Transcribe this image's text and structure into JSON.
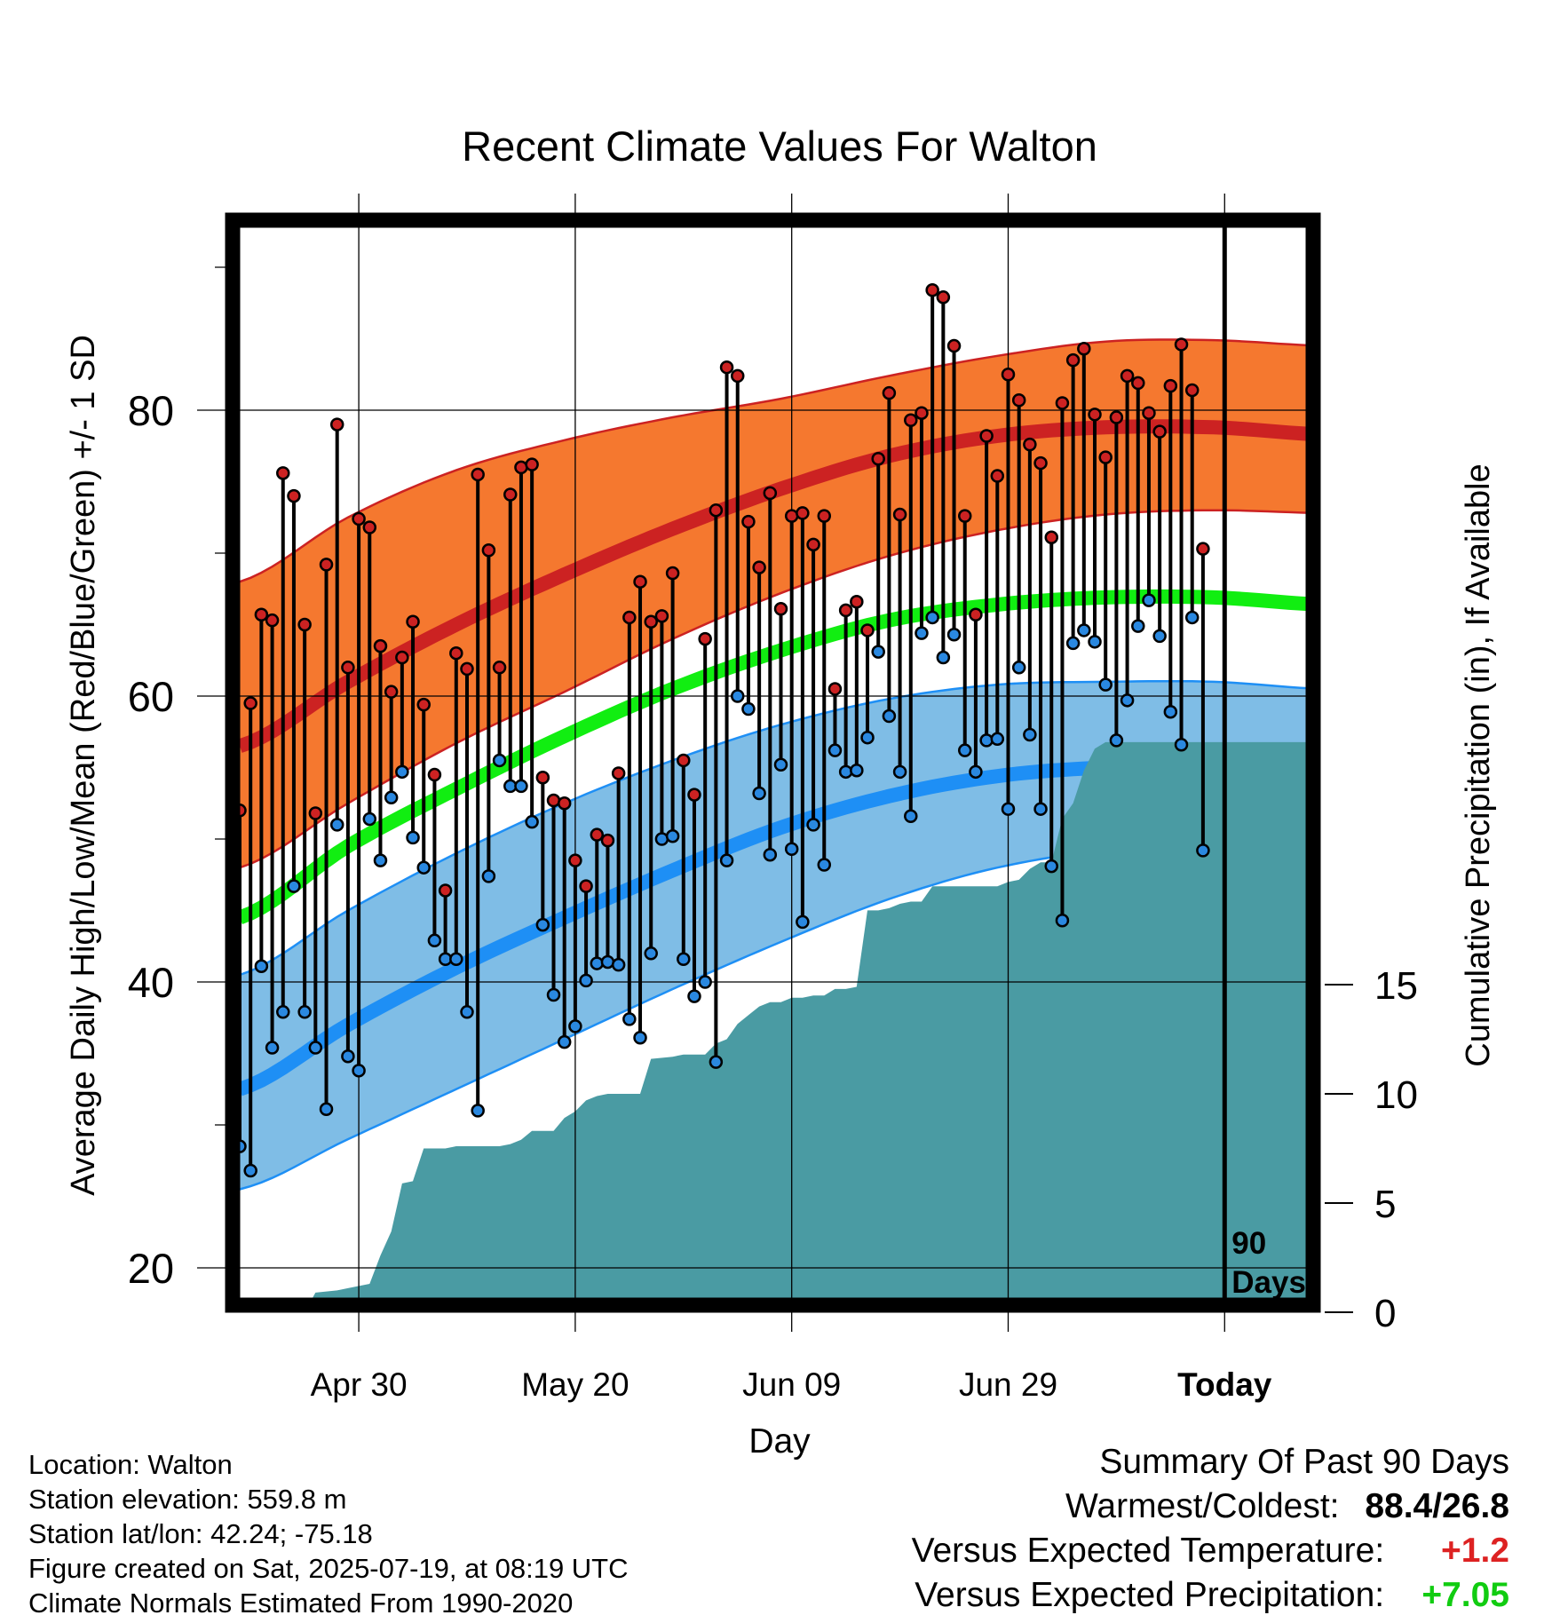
{
  "chart_data": {
    "type": "line",
    "title": "Recent Climate Values For Walton",
    "xlabel": "Day",
    "ylabel": "Average Daily High/Low/Mean (Red/Blue/Green) +/- 1 SD",
    "y2label": "Cumulative Precipitation (in), If Available",
    "x_tick_labels": [
      "Apr 30",
      "May 20",
      "Jun 09",
      "Jun 29",
      "Today"
    ],
    "x_tick_days": [
      11,
      31,
      51,
      71,
      91
    ],
    "ylim": [
      16,
      94
    ],
    "y_ticks": [
      20,
      40,
      60,
      80
    ],
    "y2lim": [
      0,
      41.5
    ],
    "y2_ticks": [
      0,
      5,
      10,
      15
    ],
    "grid": true,
    "today_marker": {
      "day": 91,
      "label_line1": "90",
      "label_line2": "Days"
    },
    "normals": {
      "days": [
        0,
        10,
        20,
        30,
        40,
        50,
        60,
        70,
        80,
        90,
        100
      ],
      "high_mean": [
        56.5,
        61.0,
        65.0,
        68.5,
        71.7,
        74.5,
        76.8,
        78.2,
        78.8,
        78.8,
        78.3
      ],
      "high_upper": [
        68.0,
        72.5,
        75.8,
        77.9,
        79.5,
        80.8,
        82.4,
        83.8,
        84.8,
        84.9,
        84.5
      ],
      "high_lower": [
        48.0,
        52.5,
        56.7,
        60.3,
        64.0,
        67.2,
        69.8,
        71.6,
        72.7,
        73.0,
        72.8
      ],
      "mean": [
        44.5,
        49.5,
        53.5,
        57.2,
        60.5,
        63.2,
        65.3,
        66.4,
        66.9,
        66.9,
        66.4
      ],
      "low_mean": [
        32.5,
        37.0,
        41.0,
        44.5,
        47.8,
        50.8,
        53.0,
        54.4,
        55.0,
        55.0,
        54.6
      ],
      "low_upper": [
        40.5,
        45.0,
        49.0,
        52.5,
        55.5,
        58.0,
        59.8,
        60.8,
        61.0,
        61.0,
        60.5
      ],
      "low_lower": [
        25.5,
        29.0,
        32.5,
        36.0,
        39.5,
        42.8,
        45.8,
        48.0,
        49.2,
        49.5,
        49.3
      ]
    },
    "daily_days": [
      0,
      1,
      2,
      3,
      4,
      5,
      6,
      7,
      8,
      9,
      10,
      11,
      12,
      13,
      14,
      15,
      16,
      17,
      18,
      19,
      20,
      21,
      22,
      23,
      24,
      25,
      26,
      27,
      28,
      29,
      30,
      31,
      32,
      33,
      34,
      35,
      36,
      37,
      38,
      39,
      40,
      41,
      42,
      43,
      44,
      45,
      46,
      47,
      48,
      49,
      50,
      51,
      52,
      53,
      54,
      55,
      56,
      57,
      58,
      59,
      60,
      61,
      62,
      63,
      64,
      65,
      66,
      67,
      68,
      69,
      70,
      71,
      72,
      73,
      74,
      75,
      76,
      77,
      78,
      79,
      80,
      81,
      82,
      83,
      84,
      85,
      86,
      87,
      88,
      89,
      90
    ],
    "daily_high": [
      52,
      59.5,
      65.7,
      65.3,
      75.6,
      74,
      65,
      51.8,
      69.2,
      79,
      62,
      72.4,
      71.8,
      63.5,
      60.3,
      62.7,
      65.2,
      59.4,
      54.5,
      46.4,
      63,
      61.9,
      75.5,
      70.2,
      62,
      74.1,
      76,
      76.2,
      54.3,
      52.7,
      52.5,
      48.5,
      46.7,
      50.3,
      49.9,
      54.6,
      65.5,
      68,
      65.2,
      65.6,
      68.6,
      55.5,
      53.1,
      64,
      73,
      83,
      82.4,
      72.2,
      69,
      74.2,
      66.1,
      72.6,
      72.8,
      70.6,
      72.6,
      60.5,
      66,
      66.6,
      64.6,
      76.6,
      81.2,
      72.7,
      79.3,
      79.8,
      88.4,
      87.9,
      84.5,
      72.6,
      65.7,
      78.2,
      75.4,
      82.5,
      80.7,
      77.6,
      76.3,
      71.1,
      80.5,
      83.5,
      84.3,
      79.7,
      76.7,
      79.5,
      82.4,
      81.9,
      79.8,
      78.5,
      81.7,
      84.6,
      81.4,
      70.3
    ],
    "daily_low": [
      28.5,
      26.8,
      41.1,
      35.4,
      37.9,
      46.7,
      37.9,
      35.4,
      31.1,
      51,
      34.8,
      33.8,
      51.4,
      48.5,
      52.9,
      54.7,
      50.1,
      48,
      42.9,
      41.6,
      41.6,
      37.9,
      31,
      47.4,
      55.5,
      53.7,
      53.7,
      51.2,
      44,
      39.1,
      35.8,
      36.9,
      40.1,
      41.3,
      41.4,
      41.2,
      37.4,
      36.1,
      42,
      50,
      50.2,
      41.6,
      39,
      40,
      34.4,
      48.5,
      60,
      59.1,
      53.2,
      48.9,
      55.2,
      49.3,
      44.2,
      51,
      48.2,
      56.2,
      54.7,
      54.8,
      57.1,
      63.1,
      58.6,
      54.7,
      51.6,
      64.4,
      65.5,
      62.7,
      64.3,
      56.2,
      54.7,
      56.9,
      57,
      52.1,
      62,
      57.3,
      52.1,
      48.1,
      44.3,
      63.7,
      64.6,
      63.8,
      60.8,
      56.9,
      59.7,
      64.9,
      66.7,
      64.2,
      58.9,
      56.6,
      65.5,
      49.2
    ],
    "precip_cumulative": {
      "days": [
        0,
        6,
        7,
        9,
        10,
        12,
        13,
        14,
        15,
        16,
        17,
        19,
        20,
        21,
        22,
        24,
        25,
        26,
        27,
        28,
        29,
        30,
        31,
        32,
        33,
        34,
        35,
        36,
        37,
        38,
        40,
        41,
        42,
        43,
        44,
        45,
        46,
        47,
        48,
        49,
        50,
        51,
        52,
        53,
        54,
        55,
        56,
        57,
        58,
        59,
        60,
        61,
        62,
        63,
        64,
        65,
        66,
        67,
        68,
        69,
        70,
        71,
        72,
        73,
        74,
        75,
        76,
        77,
        78,
        79,
        80,
        81,
        82,
        83,
        84,
        85,
        86,
        87,
        88,
        89,
        90,
        91,
        100
      ],
      "values": [
        0,
        0,
        0.9,
        1.0,
        1.1,
        1.3,
        2.6,
        3.7,
        5.9,
        6.0,
        7.5,
        7.5,
        7.6,
        7.6,
        7.6,
        7.6,
        7.7,
        7.9,
        8.3,
        8.3,
        8.3,
        8.9,
        9.2,
        9.7,
        9.9,
        10.0,
        10.0,
        10.0,
        10.0,
        11.6,
        11.7,
        11.8,
        11.8,
        11.8,
        12.3,
        12.5,
        13.2,
        13.6,
        14.0,
        14.2,
        14.2,
        14.4,
        14.4,
        14.5,
        14.5,
        14.8,
        14.8,
        14.9,
        18.4,
        18.4,
        18.5,
        18.7,
        18.8,
        18.8,
        19.5,
        19.5,
        19.5,
        19.5,
        19.5,
        19.5,
        19.5,
        19.7,
        19.8,
        20.3,
        20.6,
        20.6,
        22.6,
        23.3,
        24.8,
        25.8,
        26.1,
        26.1,
        26.1,
        26.1,
        26.1,
        26.1,
        26.1,
        26.1,
        26.1,
        26.1,
        26.1,
        26.1,
        26.1
      ]
    }
  },
  "colors": {
    "high_band": "#f5782f",
    "high_line": "#cc2222",
    "mean_line": "#11ee11",
    "low_band": "#7fbde6",
    "low_line": "#1e8ff5",
    "precip": "#4a9ba3",
    "high_dot": "#cc2222",
    "low_dot": "#2a88e0"
  },
  "footer_left": {
    "location": "Location: Walton",
    "elevation": "Station elevation: 559.8 m",
    "latlon": "Station lat/lon: 42.24; -75.18",
    "created": "Figure created on Sat, 2025-07-19, at 08:19 UTC",
    "normals": "Climate Normals Estimated From 1990-2020"
  },
  "summary": {
    "heading": "Summary Of Past 90 Days",
    "warmest_label": "Warmest/Coldest:",
    "warmest_value": "88.4/26.8",
    "temp_label": "Versus Expected Temperature:",
    "temp_value": "+1.2",
    "temp_color": "#dd2222",
    "precip_label": "Versus Expected Precipitation:",
    "precip_value": "+7.05",
    "precip_color": "#11cc11"
  }
}
